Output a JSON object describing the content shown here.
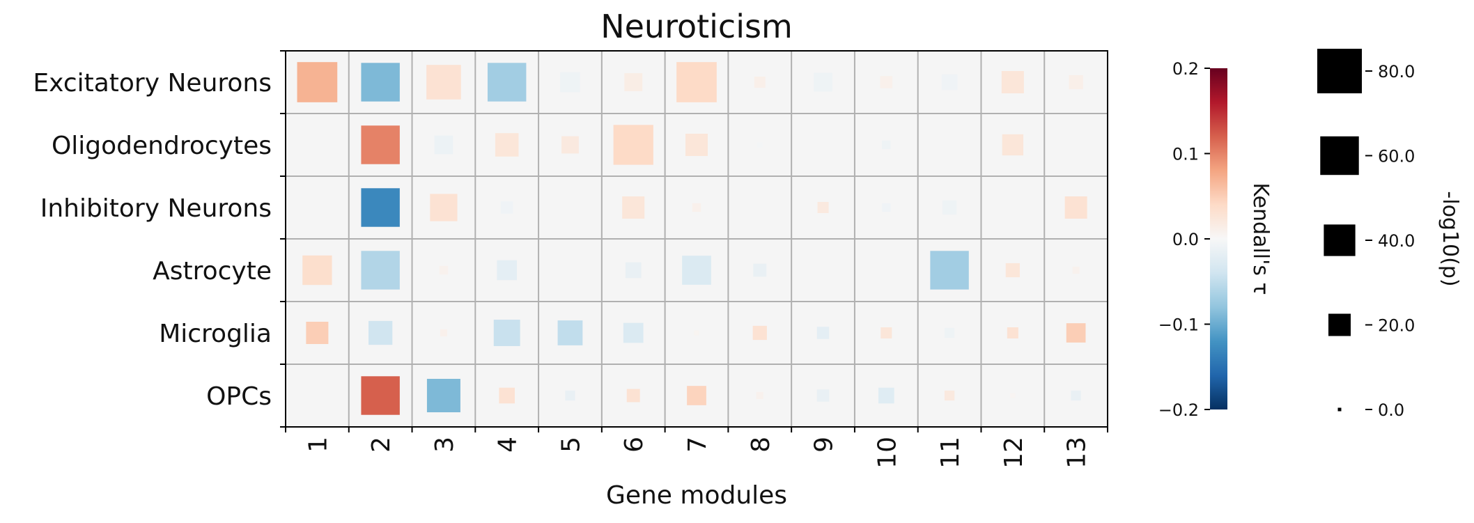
{
  "chart_data": {
    "type": "heatmap",
    "title": "Neuroticism",
    "xlabel": "Gene modules",
    "ylabel": "",
    "x_categories": [
      "1",
      "2",
      "3",
      "4",
      "5",
      "6",
      "7",
      "8",
      "9",
      "10",
      "11",
      "12",
      "13"
    ],
    "y_categories": [
      "Excitatory Neurons",
      "Oligodendrocytes",
      "Inhibitory Neurons",
      "Astrocyte",
      "Microglia",
      "OPCs"
    ],
    "grid": true,
    "color_scale": {
      "label": "Kendall's τ",
      "range": [
        -0.2,
        0.2
      ],
      "ticks": [
        "0.2",
        "0.1",
        "0.0",
        "−0.1",
        "−0.2"
      ],
      "colormap": "RdBu_r",
      "stops": [
        "#053061",
        "#2166ac",
        "#4393c3",
        "#92c5de",
        "#d1e5f0",
        "#f7f7f7",
        "#fddbc7",
        "#f4a582",
        "#d6604d",
        "#b2182b",
        "#67001f"
      ]
    },
    "size_scale": {
      "label": "-log10(p)",
      "ticks": [
        "80.0",
        "60.0",
        "40.0",
        "20.0",
        "0.0"
      ],
      "tick_values": [
        80,
        60,
        40,
        20,
        0
      ]
    },
    "cells": [
      {
        "row": "Excitatory Neurons",
        "col": "1",
        "tau": 0.07,
        "neglog10p": 65
      },
      {
        "row": "Excitatory Neurons",
        "col": "2",
        "tau": -0.09,
        "neglog10p": 60
      },
      {
        "row": "Excitatory Neurons",
        "col": "3",
        "tau": 0.03,
        "neglog10p": 48
      },
      {
        "row": "Excitatory Neurons",
        "col": "4",
        "tau": -0.07,
        "neglog10p": 60
      },
      {
        "row": "Excitatory Neurons",
        "col": "5",
        "tau": -0.01,
        "neglog10p": 16
      },
      {
        "row": "Excitatory Neurons",
        "col": "6",
        "tau": 0.015,
        "neglog10p": 13
      },
      {
        "row": "Excitatory Neurons",
        "col": "7",
        "tau": 0.04,
        "neglog10p": 65
      },
      {
        "row": "Excitatory Neurons",
        "col": "8",
        "tau": 0.012,
        "neglog10p": 5
      },
      {
        "row": "Excitatory Neurons",
        "col": "9",
        "tau": -0.01,
        "neglog10p": 14
      },
      {
        "row": "Excitatory Neurons",
        "col": "10",
        "tau": 0.01,
        "neglog10p": 6
      },
      {
        "row": "Excitatory Neurons",
        "col": "11",
        "tau": -0.008,
        "neglog10p": 10
      },
      {
        "row": "Excitatory Neurons",
        "col": "12",
        "tau": 0.025,
        "neglog10p": 20
      },
      {
        "row": "Excitatory Neurons",
        "col": "13",
        "tau": 0.012,
        "neglog10p": 8
      },
      {
        "row": "Oligodendrocytes",
        "col": "1",
        "tau": 0.0,
        "neglog10p": 0
      },
      {
        "row": "Oligodendrocytes",
        "col": "2",
        "tau": 0.1,
        "neglog10p": 60
      },
      {
        "row": "Oligodendrocytes",
        "col": "3",
        "tau": -0.012,
        "neglog10p": 14
      },
      {
        "row": "Oligodendrocytes",
        "col": "4",
        "tau": 0.025,
        "neglog10p": 22
      },
      {
        "row": "Oligodendrocytes",
        "col": "5",
        "tau": 0.02,
        "neglog10p": 12
      },
      {
        "row": "Oligodendrocytes",
        "col": "6",
        "tau": 0.04,
        "neglog10p": 64
      },
      {
        "row": "Oligodendrocytes",
        "col": "7",
        "tau": 0.025,
        "neglog10p": 20
      },
      {
        "row": "Oligodendrocytes",
        "col": "8",
        "tau": -0.004,
        "neglog10p": 1
      },
      {
        "row": "Oligodendrocytes",
        "col": "9",
        "tau": 0.0,
        "neglog10p": 0
      },
      {
        "row": "Oligodendrocytes",
        "col": "10",
        "tau": -0.01,
        "neglog10p": 3
      },
      {
        "row": "Oligodendrocytes",
        "col": "11",
        "tau": 0.0,
        "neglog10p": 0
      },
      {
        "row": "Oligodendrocytes",
        "col": "12",
        "tau": 0.025,
        "neglog10p": 18
      },
      {
        "row": "Oligodendrocytes",
        "col": "13",
        "tau": 0.0,
        "neglog10p": 0
      },
      {
        "row": "Inhibitory Neurons",
        "col": "1",
        "tau": 0.0,
        "neglog10p": 0
      },
      {
        "row": "Inhibitory Neurons",
        "col": "2",
        "tau": -0.13,
        "neglog10p": 60
      },
      {
        "row": "Inhibitory Neurons",
        "col": "3",
        "tau": 0.03,
        "neglog10p": 30
      },
      {
        "row": "Inhibitory Neurons",
        "col": "4",
        "tau": -0.008,
        "neglog10p": 6
      },
      {
        "row": "Inhibitory Neurons",
        "col": "5",
        "tau": 0.0,
        "neglog10p": 0
      },
      {
        "row": "Inhibitory Neurons",
        "col": "6",
        "tau": 0.025,
        "neglog10p": 20
      },
      {
        "row": "Inhibitory Neurons",
        "col": "7",
        "tau": 0.01,
        "neglog10p": 3
      },
      {
        "row": "Inhibitory Neurons",
        "col": "8",
        "tau": 0.0,
        "neglog10p": 0
      },
      {
        "row": "Inhibitory Neurons",
        "col": "9",
        "tau": 0.02,
        "neglog10p": 5
      },
      {
        "row": "Inhibitory Neurons",
        "col": "10",
        "tau": -0.008,
        "neglog10p": 3
      },
      {
        "row": "Inhibitory Neurons",
        "col": "11",
        "tau": -0.01,
        "neglog10p": 8
      },
      {
        "row": "Inhibitory Neurons",
        "col": "12",
        "tau": 0.0,
        "neglog10p": 0
      },
      {
        "row": "Inhibitory Neurons",
        "col": "13",
        "tau": 0.03,
        "neglog10p": 20
      },
      {
        "row": "Astrocyte",
        "col": "1",
        "tau": 0.035,
        "neglog10p": 35
      },
      {
        "row": "Astrocyte",
        "col": "2",
        "tau": -0.06,
        "neglog10p": 60
      },
      {
        "row": "Astrocyte",
        "col": "3",
        "tau": 0.008,
        "neglog10p": 3
      },
      {
        "row": "Astrocyte",
        "col": "4",
        "tau": -0.02,
        "neglog10p": 16
      },
      {
        "row": "Astrocyte",
        "col": "5",
        "tau": 0.0,
        "neglog10p": 0
      },
      {
        "row": "Astrocyte",
        "col": "6",
        "tau": -0.015,
        "neglog10p": 10
      },
      {
        "row": "Astrocyte",
        "col": "7",
        "tau": -0.03,
        "neglog10p": 34
      },
      {
        "row": "Astrocyte",
        "col": "8",
        "tau": -0.015,
        "neglog10p": 7
      },
      {
        "row": "Astrocyte",
        "col": "9",
        "tau": 0.0,
        "neglog10p": 0
      },
      {
        "row": "Astrocyte",
        "col": "10",
        "tau": 0.0,
        "neglog10p": 0
      },
      {
        "row": "Astrocyte",
        "col": "11",
        "tau": -0.07,
        "neglog10p": 60
      },
      {
        "row": "Astrocyte",
        "col": "12",
        "tau": 0.025,
        "neglog10p": 8
      },
      {
        "row": "Astrocyte",
        "col": "13",
        "tau": 0.008,
        "neglog10p": 2
      },
      {
        "row": "Microglia",
        "col": "1",
        "tau": 0.05,
        "neglog10p": 20
      },
      {
        "row": "Microglia",
        "col": "2",
        "tau": -0.04,
        "neglog10p": 23
      },
      {
        "row": "Microglia",
        "col": "3",
        "tau": 0.01,
        "neglog10p": 2
      },
      {
        "row": "Microglia",
        "col": "4",
        "tau": -0.045,
        "neglog10p": 28
      },
      {
        "row": "Microglia",
        "col": "5",
        "tau": -0.05,
        "neglog10p": 25
      },
      {
        "row": "Microglia",
        "col": "6",
        "tau": -0.03,
        "neglog10p": 16
      },
      {
        "row": "Microglia",
        "col": "7",
        "tau": 0.005,
        "neglog10p": 1
      },
      {
        "row": "Microglia",
        "col": "8",
        "tau": 0.03,
        "neglog10p": 8
      },
      {
        "row": "Microglia",
        "col": "9",
        "tau": -0.02,
        "neglog10p": 6
      },
      {
        "row": "Microglia",
        "col": "10",
        "tau": 0.025,
        "neglog10p": 5
      },
      {
        "row": "Microglia",
        "col": "11",
        "tau": -0.01,
        "neglog10p": 4
      },
      {
        "row": "Microglia",
        "col": "12",
        "tau": 0.03,
        "neglog10p": 5
      },
      {
        "row": "Microglia",
        "col": "13",
        "tau": 0.05,
        "neglog10p": 15
      },
      {
        "row": "OPCs",
        "col": "1",
        "tau": 0.0,
        "neglog10p": 0
      },
      {
        "row": "OPCs",
        "col": "2",
        "tau": 0.12,
        "neglog10p": 60
      },
      {
        "row": "OPCs",
        "col": "3",
        "tau": -0.09,
        "neglog10p": 45
      },
      {
        "row": "OPCs",
        "col": "4",
        "tau": 0.03,
        "neglog10p": 10
      },
      {
        "row": "OPCs",
        "col": "5",
        "tau": -0.015,
        "neglog10p": 4
      },
      {
        "row": "OPCs",
        "col": "6",
        "tau": 0.03,
        "neglog10p": 7
      },
      {
        "row": "OPCs",
        "col": "7",
        "tau": 0.045,
        "neglog10p": 15
      },
      {
        "row": "OPCs",
        "col": "8",
        "tau": 0.008,
        "neglog10p": 2
      },
      {
        "row": "OPCs",
        "col": "9",
        "tau": -0.015,
        "neglog10p": 6
      },
      {
        "row": "OPCs",
        "col": "10",
        "tau": -0.025,
        "neglog10p": 10
      },
      {
        "row": "OPCs",
        "col": "11",
        "tau": 0.02,
        "neglog10p": 4
      },
      {
        "row": "OPCs",
        "col": "12",
        "tau": 0.004,
        "neglog10p": 1
      },
      {
        "row": "OPCs",
        "col": "13",
        "tau": -0.015,
        "neglog10p": 4
      }
    ]
  }
}
